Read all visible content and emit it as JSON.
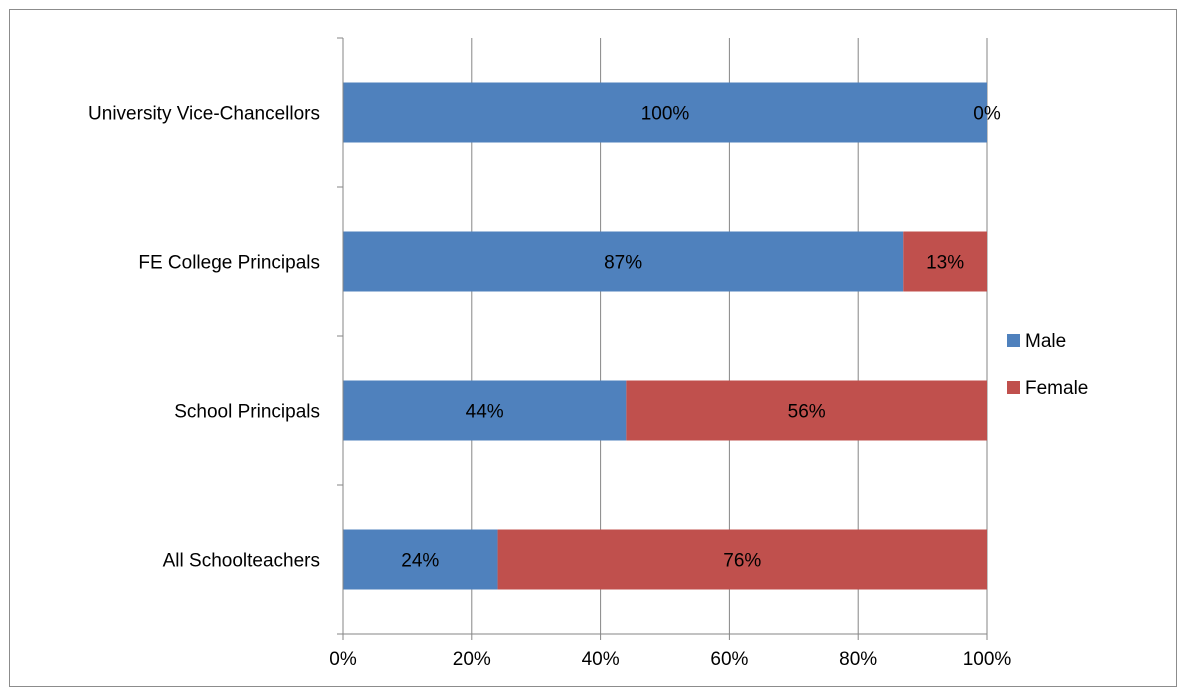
{
  "chart_data": {
    "type": "bar",
    "orientation": "horizontal",
    "stacked": "percent",
    "categories": [
      "University Vice-Chancellors",
      "FE College Principals",
      "School Principals",
      "All Schoolteachers"
    ],
    "series": [
      {
        "name": "Male",
        "color": "#4f81bd",
        "values": [
          100,
          87,
          44,
          24
        ],
        "labels": [
          "100%",
          "87%",
          "44%",
          "24%"
        ]
      },
      {
        "name": "Female",
        "color": "#c0504d",
        "values": [
          0,
          13,
          56,
          76
        ],
        "labels": [
          "0%",
          "13%",
          "56%",
          "76%"
        ]
      }
    ],
    "title": "",
    "xlabel": "",
    "ylabel": "",
    "xlim": [
      0,
      100
    ],
    "x_ticks": [
      "0%",
      "20%",
      "40%",
      "60%",
      "80%",
      "100%"
    ],
    "grid": "vertical",
    "legend": "right"
  }
}
